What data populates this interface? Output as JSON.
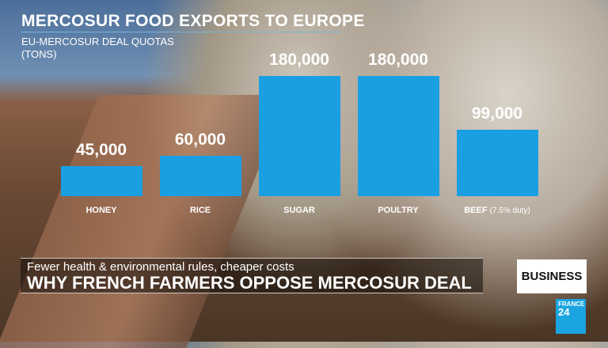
{
  "chart_data": {
    "type": "bar",
    "title": "MERCOSUR FOOD EXPORTS TO EUROPE",
    "subtitle": "EU-MERCOSUR DEAL QUOTAS",
    "unit": "(TONS)",
    "categories": [
      "HONEY",
      "RICE",
      "SUGAR",
      "POULTRY",
      "BEEF"
    ],
    "category_notes": [
      "",
      "",
      "",
      "",
      "(7.5% duty)"
    ],
    "values": [
      45000,
      60000,
      180000,
      180000,
      99000
    ],
    "value_labels": [
      "45,000",
      "60,000",
      "180,000",
      "180,000",
      "99,000"
    ],
    "ylim": [
      0,
      180000
    ],
    "bar_color": "#1a9fe2",
    "grid": false
  },
  "lower_third": {
    "kicker": "Fewer health & environmental rules, cheaper costs",
    "headline": "WHY FRENCH FARMERS OPPOSE MERCOSUR DEAL",
    "section": "BUSINESS"
  },
  "logo": {
    "line1": "FRANCE",
    "line2": "24"
  }
}
